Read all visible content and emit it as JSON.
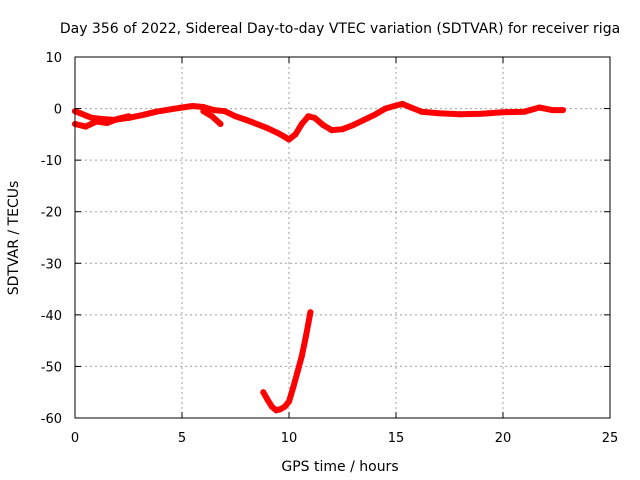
{
  "chart_data": {
    "type": "scatter",
    "title": "Day 356 of 2022, Sidereal Day-to-day VTEC variation (SDTVAR) for receiver riga",
    "xlabel": "GPS time / hours",
    "ylabel": "SDTVAR / TECUs",
    "xlim": [
      0,
      25
    ],
    "ylim": [
      -60,
      10
    ],
    "xticks": [
      0,
      5,
      10,
      15,
      20,
      25
    ],
    "yticks": [
      10,
      0,
      -10,
      -20,
      -30,
      -40,
      -50,
      -60
    ],
    "grid": true,
    "color": "#ff0000",
    "series": [
      {
        "values": [
          [
            0.0,
            -0.5
          ],
          [
            0.3,
            -1.0
          ],
          [
            0.6,
            -1.5
          ],
          [
            0.8,
            -1.8
          ],
          [
            1.2,
            -2.0
          ],
          [
            1.8,
            -2.2
          ],
          [
            2.5,
            -1.8
          ],
          [
            3.2,
            -1.2
          ],
          [
            3.8,
            -0.6
          ],
          [
            4.4,
            -0.2
          ],
          [
            5.0,
            0.2
          ],
          [
            5.5,
            0.5
          ],
          [
            6.0,
            0.3
          ],
          [
            6.5,
            -0.3
          ],
          [
            7.0,
            -0.5
          ],
          [
            7.5,
            -1.5
          ],
          [
            8.0,
            -2.2
          ],
          [
            8.5,
            -3.0
          ],
          [
            9.0,
            -3.8
          ],
          [
            9.5,
            -4.8
          ],
          [
            9.8,
            -5.5
          ],
          [
            10.0,
            -6.0
          ],
          [
            10.3,
            -5.0
          ],
          [
            10.6,
            -3.0
          ],
          [
            10.9,
            -1.5
          ],
          [
            11.2,
            -1.8
          ],
          [
            11.6,
            -3.2
          ],
          [
            12.0,
            -4.2
          ],
          [
            12.5,
            -4.0
          ],
          [
            13.0,
            -3.2
          ],
          [
            13.5,
            -2.2
          ],
          [
            14.0,
            -1.2
          ],
          [
            14.5,
            0.0
          ],
          [
            15.0,
            0.6
          ],
          [
            15.3,
            0.9
          ],
          [
            15.7,
            0.2
          ],
          [
            16.2,
            -0.6
          ],
          [
            17.0,
            -0.9
          ],
          [
            18.0,
            -1.1
          ],
          [
            19.0,
            -1.0
          ],
          [
            20.0,
            -0.7
          ],
          [
            21.0,
            -0.6
          ],
          [
            21.7,
            0.2
          ],
          [
            22.3,
            -0.3
          ],
          [
            22.8,
            -0.3
          ]
        ]
      },
      {
        "values": [
          [
            0.0,
            -3.0
          ],
          [
            0.5,
            -3.5
          ],
          [
            1.0,
            -2.5
          ],
          [
            1.5,
            -2.8
          ],
          [
            2.0,
            -2.0
          ],
          [
            2.5,
            -1.5
          ]
        ]
      },
      {
        "values": [
          [
            6.0,
            -0.5
          ],
          [
            6.4,
            -1.5
          ],
          [
            6.8,
            -3.0
          ]
        ]
      },
      {
        "values": [
          [
            8.8,
            -55.0
          ],
          [
            9.0,
            -56.5
          ],
          [
            9.2,
            -57.8
          ],
          [
            9.4,
            -58.5
          ],
          [
            9.6,
            -58.3
          ],
          [
            9.8,
            -57.8
          ],
          [
            10.0,
            -56.8
          ],
          [
            10.2,
            -54.0
          ],
          [
            10.4,
            -51.0
          ],
          [
            10.6,
            -48.0
          ],
          [
            10.8,
            -44.0
          ],
          [
            11.0,
            -39.5
          ]
        ]
      }
    ]
  }
}
